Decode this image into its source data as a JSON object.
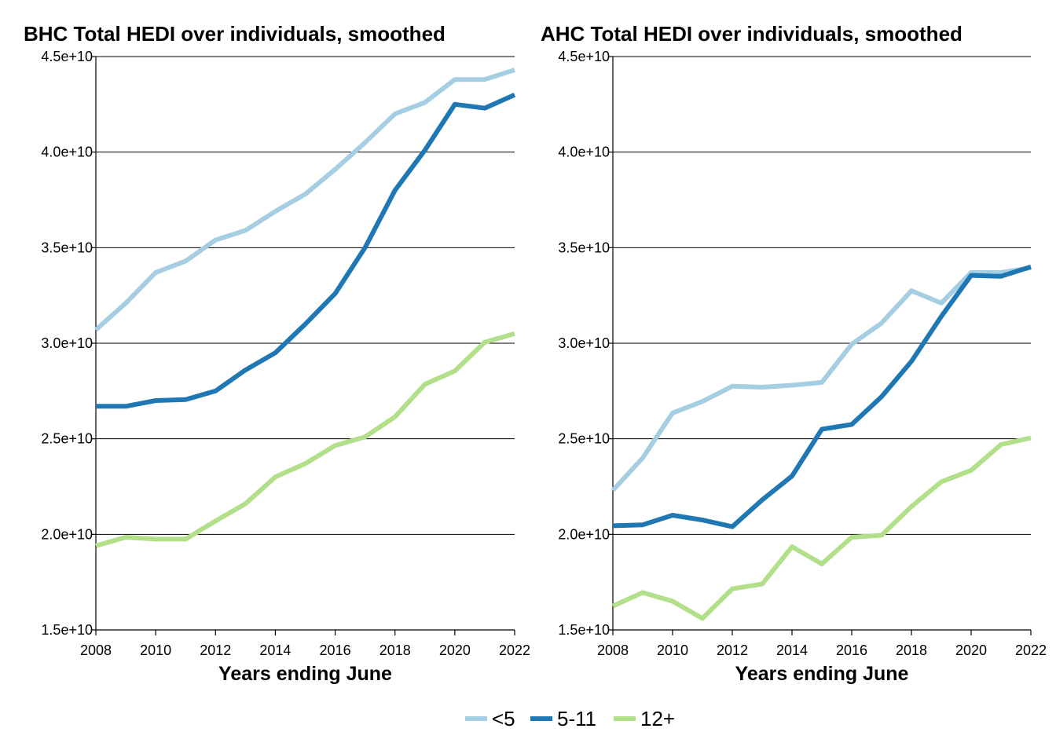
{
  "chart_data": [
    {
      "type": "line",
      "title": "BHC Total HEDI over individuals, smoothed",
      "xlabel": "Years ending June",
      "ylabel": "",
      "xlim": [
        2008,
        2022
      ],
      "ylim": [
        15000000000,
        45000000000
      ],
      "x_ticks": [
        2008,
        2010,
        2012,
        2014,
        2016,
        2018,
        2020,
        2022
      ],
      "x_tick_labels": [
        "2008",
        "2010",
        "2012",
        "2014",
        "2016",
        "2018",
        "2020",
        "2022"
      ],
      "y_ticks": [
        15000000000,
        20000000000,
        25000000000,
        30000000000,
        35000000000,
        40000000000,
        45000000000
      ],
      "y_tick_labels": [
        "1.5e+10",
        "2.0e+10",
        "2.5e+10",
        "3.0e+10",
        "3.5e+10",
        "4.0e+10",
        "4.5e+10"
      ],
      "grid": "horizontal",
      "x": [
        2008,
        2009,
        2010,
        2011,
        2012,
        2013,
        2014,
        2015,
        2016,
        2017,
        2018,
        2019,
        2020,
        2021,
        2022
      ],
      "series": [
        {
          "name": "<5",
          "color": "#a6cee3",
          "values": [
            30700000000,
            32100000000,
            33700000000,
            34300000000,
            35400000000,
            35900000000,
            36900000000,
            37800000000,
            39100000000,
            40500000000,
            42000000000,
            42600000000,
            43800000000,
            43800000000,
            44300000000
          ]
        },
        {
          "name": "5-11",
          "color": "#1f78b4",
          "values": [
            26700000000,
            26700000000,
            27000000000,
            27050000000,
            27500000000,
            28600000000,
            29500000000,
            31000000000,
            32600000000,
            35000000000,
            38000000000,
            40100000000,
            42500000000,
            42300000000,
            43000000000
          ]
        },
        {
          "name": "12+",
          "color": "#b2df8a",
          "values": [
            19400000000,
            19850000000,
            19750000000,
            19750000000,
            20700000000,
            21600000000,
            23000000000,
            23700000000,
            24650000000,
            25100000000,
            26150000000,
            27850000000,
            28550000000,
            30050000000,
            30500000000
          ]
        }
      ]
    },
    {
      "type": "line",
      "title": "AHC Total HEDI over individuals, smoothed",
      "xlabel": "Years ending June",
      "ylabel": "",
      "xlim": [
        2008,
        2022
      ],
      "ylim": [
        15000000000,
        45000000000
      ],
      "x_ticks": [
        2008,
        2010,
        2012,
        2014,
        2016,
        2018,
        2020,
        2022
      ],
      "x_tick_labels": [
        "2008",
        "2010",
        "2012",
        "2014",
        "2016",
        "2018",
        "2020",
        "2022"
      ],
      "y_ticks": [
        15000000000,
        20000000000,
        25000000000,
        30000000000,
        35000000000,
        40000000000,
        45000000000
      ],
      "y_tick_labels": [
        "1.5e+10",
        "2.0e+10",
        "2.5e+10",
        "3.0e+10",
        "3.5e+10",
        "4.0e+10",
        "4.5e+10"
      ],
      "grid": "horizontal",
      "x": [
        2008,
        2009,
        2010,
        2011,
        2012,
        2013,
        2014,
        2015,
        2016,
        2017,
        2018,
        2019,
        2020,
        2021,
        2022
      ],
      "series": [
        {
          "name": "<5",
          "color": "#a6cee3",
          "values": [
            22300000000,
            24000000000,
            26350000000,
            26950000000,
            27750000000,
            27700000000,
            27800000000,
            27950000000,
            29950000000,
            31050000000,
            32750000000,
            32100000000,
            33700000000,
            33700000000,
            33950000000
          ]
        },
        {
          "name": "5-11",
          "color": "#1f78b4",
          "values": [
            20450000000,
            20500000000,
            21000000000,
            20750000000,
            20400000000,
            21800000000,
            23050000000,
            25500000000,
            25750000000,
            27200000000,
            29050000000,
            31400000000,
            33550000000,
            33500000000,
            34000000000
          ]
        },
        {
          "name": "12+",
          "color": "#b2df8a",
          "values": [
            16250000000,
            16950000000,
            16500000000,
            15600000000,
            17150000000,
            17400000000,
            19350000000,
            18450000000,
            19850000000,
            19950000000,
            21450000000,
            22750000000,
            23350000000,
            24700000000,
            25050000000
          ]
        }
      ]
    }
  ],
  "legend": {
    "placement": "bottom",
    "items": [
      {
        "label": "<5",
        "color": "#a6cee3"
      },
      {
        "label": "5-11",
        "color": "#1f78b4"
      },
      {
        "label": "12+",
        "color": "#b2df8a"
      }
    ]
  }
}
